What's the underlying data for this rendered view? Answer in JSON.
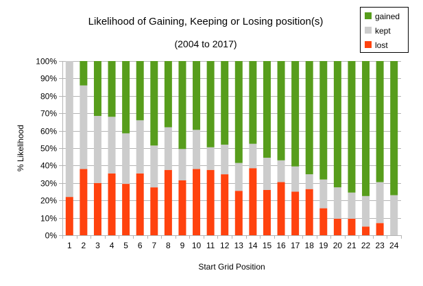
{
  "chart_data": {
    "type": "bar",
    "stacked": true,
    "title": "Likelihood of Gaining, Keeping or Losing position(s)",
    "subtitle": "(2004 to 2017)",
    "xlabel": "Start Grid Position",
    "ylabel": "% Likelihood",
    "ylim": [
      0,
      100
    ],
    "y_ticks": [
      "0%",
      "10%",
      "20%",
      "30%",
      "40%",
      "50%",
      "60%",
      "70%",
      "80%",
      "90%",
      "100%"
    ],
    "categories": [
      "1",
      "2",
      "3",
      "4",
      "5",
      "6",
      "7",
      "8",
      "9",
      "10",
      "11",
      "12",
      "13",
      "14",
      "15",
      "16",
      "17",
      "18",
      "19",
      "20",
      "21",
      "22",
      "23",
      "24"
    ],
    "series": [
      {
        "name": "lost",
        "color": "#ff420e",
        "values": [
          22,
          38,
          30,
          35.5,
          29.5,
          35.5,
          27.5,
          37.5,
          31.5,
          38,
          37.5,
          35,
          25.5,
          38.5,
          26,
          30.5,
          25,
          26.5,
          15.5,
          9.5,
          9.5,
          5,
          7,
          0
        ]
      },
      {
        "name": "kept",
        "color": "#cccccc",
        "values": [
          78,
          48,
          38.5,
          32.5,
          29,
          30.5,
          24,
          24.5,
          18,
          22.5,
          13,
          17,
          16,
          14,
          18.5,
          12.5,
          14.5,
          8.5,
          16.5,
          18,
          15,
          17.5,
          23.5,
          23
        ]
      },
      {
        "name": "gained",
        "color": "#579d1c",
        "values": [
          0,
          14,
          31.5,
          32,
          41.5,
          34,
          48.5,
          38,
          50.5,
          39.5,
          49.5,
          48,
          58.5,
          47.5,
          55.5,
          57,
          60.5,
          65,
          68,
          72.5,
          75.5,
          77.5,
          69.5,
          77
        ]
      }
    ],
    "legend": {
      "position": "top-right",
      "order": [
        "gained",
        "kept",
        "lost"
      ]
    },
    "grid": true
  }
}
